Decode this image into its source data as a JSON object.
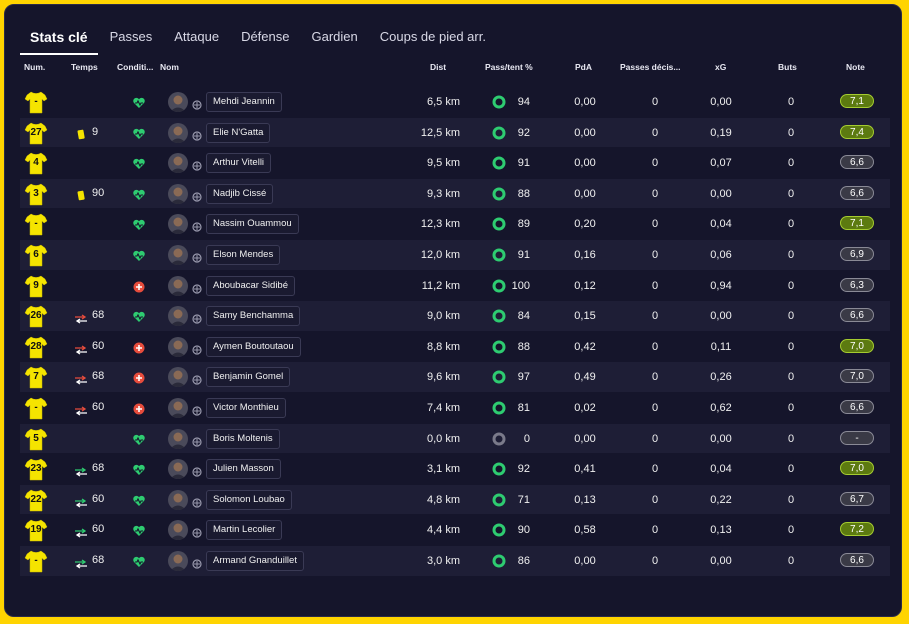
{
  "tabs": [
    "Stats clé",
    "Passes",
    "Attaque",
    "Défense",
    "Gardien",
    "Coups de pied arr."
  ],
  "columns": {
    "num": "Num.",
    "temps": "Temps",
    "cond": "Conditi...",
    "nom": "Nom",
    "dist": "Dist",
    "pass": "Pass/tent %",
    "pda": "PdA",
    "pdec": "Passes décis...",
    "xg": "xG",
    "buts": "Buts",
    "note": "Note"
  },
  "colors": {
    "accent_green": "#2ecc71",
    "note_good": "#5c7a10",
    "note_mid": "#3a3a46",
    "jersey": "#f5e400",
    "card_yellow": "#f5e400",
    "sub_out": "#e74c3c",
    "sub_in": "#2ecc71"
  },
  "players": [
    {
      "num": "-",
      "event": "",
      "time": "",
      "cond": "heart",
      "name": "Mehdi Jeannin",
      "dist": "6,5 km",
      "pass": "94",
      "pass_ring": "full",
      "pda": "0,00",
      "pdec": "0",
      "xg": "0,00",
      "buts": "0",
      "note": "7,1",
      "note_style": "good"
    },
    {
      "num": "27",
      "event": "yellow-card",
      "time": "9",
      "cond": "heart",
      "name": "Elie N'Gatta",
      "dist": "12,5 km",
      "pass": "92",
      "pass_ring": "full",
      "pda": "0,00",
      "pdec": "0",
      "xg": "0,19",
      "buts": "0",
      "note": "7,4",
      "note_style": "good"
    },
    {
      "num": "4",
      "event": "",
      "time": "",
      "cond": "heart",
      "name": "Arthur Vitelli",
      "dist": "9,5 km",
      "pass": "91",
      "pass_ring": "full",
      "pda": "0,00",
      "pdec": "0",
      "xg": "0,07",
      "buts": "0",
      "note": "6,6",
      "note_style": "mid"
    },
    {
      "num": "3",
      "event": "yellow-card",
      "time": "90",
      "cond": "heart",
      "name": "Nadjib Cissé",
      "dist": "9,3 km",
      "pass": "88",
      "pass_ring": "full",
      "pda": "0,00",
      "pdec": "0",
      "xg": "0,00",
      "buts": "0",
      "note": "6,6",
      "note_style": "mid"
    },
    {
      "num": "-",
      "event": "",
      "time": "",
      "cond": "heart",
      "name": "Nassim Ouammou",
      "dist": "12,3 km",
      "pass": "89",
      "pass_ring": "full",
      "pda": "0,20",
      "pdec": "0",
      "xg": "0,04",
      "buts": "0",
      "note": "7,1",
      "note_style": "good"
    },
    {
      "num": "6",
      "event": "",
      "time": "",
      "cond": "heart",
      "name": "Elson Mendes",
      "dist": "12,0 km",
      "pass": "91",
      "pass_ring": "full",
      "pda": "0,16",
      "pdec": "0",
      "xg": "0,06",
      "buts": "0",
      "note": "6,9",
      "note_style": "mid"
    },
    {
      "num": "9",
      "event": "",
      "time": "",
      "cond": "injury",
      "name": "Aboubacar Sidibé",
      "dist": "11,2 km",
      "pass": "100",
      "pass_ring": "full",
      "pda": "0,12",
      "pdec": "0",
      "xg": "0,94",
      "buts": "0",
      "note": "6,3",
      "note_style": "mid"
    },
    {
      "num": "26",
      "event": "sub-out",
      "time": "68",
      "cond": "heart",
      "name": "Samy Benchamma",
      "dist": "9,0 km",
      "pass": "84",
      "pass_ring": "full",
      "pda": "0,15",
      "pdec": "0",
      "xg": "0,00",
      "buts": "0",
      "note": "6,6",
      "note_style": "mid"
    },
    {
      "num": "28",
      "event": "sub-out",
      "time": "60",
      "cond": "injury",
      "name": "Aymen Boutoutaou",
      "dist": "8,8 km",
      "pass": "88",
      "pass_ring": "full",
      "pda": "0,42",
      "pdec": "0",
      "xg": "0,11",
      "buts": "0",
      "note": "7,0",
      "note_style": "good"
    },
    {
      "num": "7",
      "event": "sub-out",
      "time": "68",
      "cond": "injury",
      "name": "Benjamin Gomel",
      "dist": "9,6 km",
      "pass": "97",
      "pass_ring": "full",
      "pda": "0,49",
      "pdec": "0",
      "xg": "0,26",
      "buts": "0",
      "note": "7,0",
      "note_style": "mid"
    },
    {
      "num": "-",
      "event": "sub-out",
      "time": "60",
      "cond": "injury",
      "name": "Victor Monthieu",
      "dist": "7,4 km",
      "pass": "81",
      "pass_ring": "full",
      "pda": "0,02",
      "pdec": "0",
      "xg": "0,62",
      "buts": "0",
      "note": "6,6",
      "note_style": "mid"
    },
    {
      "num": "5",
      "event": "",
      "time": "",
      "cond": "heart",
      "name": "Boris Moltenis",
      "dist": "0,0 km",
      "pass": "0",
      "pass_ring": "empty",
      "pda": "0,00",
      "pdec": "0",
      "xg": "0,00",
      "buts": "0",
      "note": "-",
      "note_style": "mid"
    },
    {
      "num": "23",
      "event": "sub-in",
      "time": "68",
      "cond": "heart",
      "name": "Julien Masson",
      "dist": "3,1 km",
      "pass": "92",
      "pass_ring": "full",
      "pda": "0,41",
      "pdec": "0",
      "xg": "0,04",
      "buts": "0",
      "note": "7,0",
      "note_style": "good"
    },
    {
      "num": "22",
      "event": "sub-in",
      "time": "60",
      "cond": "heart",
      "name": "Solomon Loubao",
      "dist": "4,8 km",
      "pass": "71",
      "pass_ring": "full",
      "pda": "0,13",
      "pdec": "0",
      "xg": "0,22",
      "buts": "0",
      "note": "6,7",
      "note_style": "mid"
    },
    {
      "num": "19",
      "event": "sub-in",
      "time": "60",
      "cond": "heart",
      "name": "Martin Lecolier",
      "dist": "4,4 km",
      "pass": "90",
      "pass_ring": "full",
      "pda": "0,58",
      "pdec": "0",
      "xg": "0,13",
      "buts": "0",
      "note": "7,2",
      "note_style": "good"
    },
    {
      "num": "-",
      "event": "sub-in",
      "time": "68",
      "cond": "heart",
      "name": "Armand Gnanduillet",
      "dist": "3,0 km",
      "pass": "86",
      "pass_ring": "full",
      "pda": "0,00",
      "pdec": "0",
      "xg": "0,00",
      "buts": "0",
      "note": "6,6",
      "note_style": "mid"
    }
  ]
}
